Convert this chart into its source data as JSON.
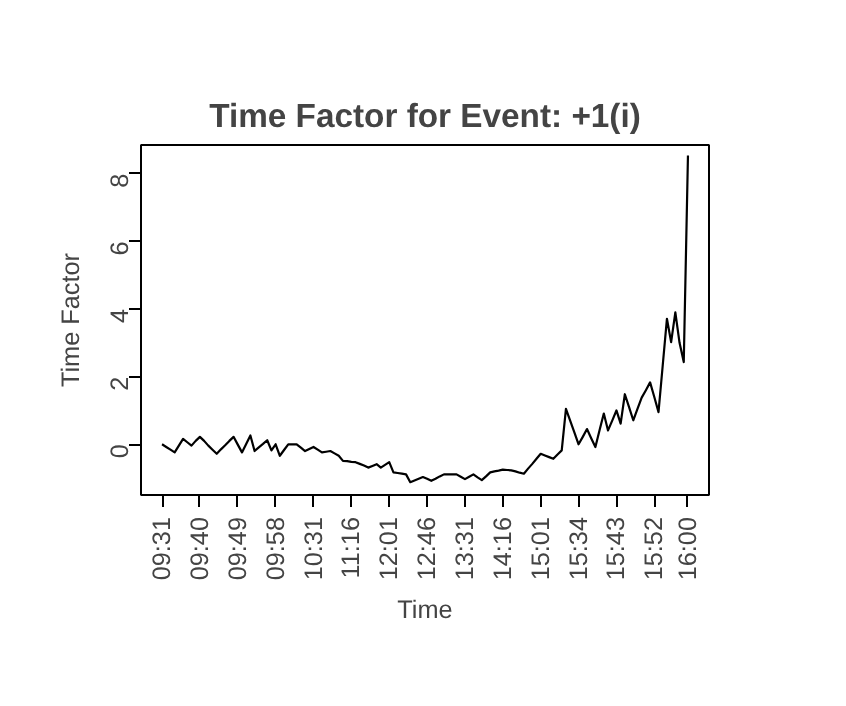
{
  "chart_data": {
    "type": "line",
    "title": "Time Factor for Event: +1(i)",
    "xlabel": "Time",
    "ylabel": "Time Factor",
    "categories": [
      "09:31",
      null,
      null,
      null,
      null,
      null,
      null,
      null,
      null,
      "09:40",
      null,
      null,
      null,
      null,
      null,
      null,
      null,
      null,
      "09:49",
      null,
      null,
      null,
      null,
      null,
      null,
      null,
      null,
      "09:58",
      null,
      null,
      null,
      null,
      null,
      null,
      null,
      null,
      "10:31",
      null,
      null,
      null,
      null,
      null,
      null,
      null,
      null,
      "11:16",
      null,
      null,
      null,
      null,
      null,
      null,
      null,
      null,
      "12:01",
      null,
      null,
      null,
      null,
      null,
      null,
      null,
      null,
      "12:46",
      null,
      null,
      null,
      null,
      null,
      null,
      null,
      null,
      "13:31",
      null,
      null,
      null,
      null,
      null,
      null,
      null,
      null,
      "14:16",
      null,
      null,
      null,
      null,
      null,
      null,
      null,
      null,
      "15:01",
      null,
      null,
      null,
      null,
      null,
      null,
      null,
      null,
      "15:34",
      null,
      null,
      null,
      null,
      null,
      null,
      null,
      null,
      "15:43",
      null,
      null,
      null,
      null,
      null,
      null,
      null,
      null,
      "15:52",
      null,
      null,
      null,
      null,
      null,
      null,
      null,
      "16:00"
    ],
    "ylim": [
      -1.5,
      8.85
    ],
    "yticks": [
      0,
      2,
      4,
      6,
      8
    ],
    "line_style": "solid",
    "series": [
      {
        "color": "#000000",
        "values": [
          0,
          -0.08,
          -0.16,
          -0.24,
          -0.04,
          0.16,
          0.06,
          -0.04,
          0.1,
          0.22,
          0.1,
          -0.04,
          -0.16,
          -0.28,
          -0.15,
          -0.03,
          0.1,
          0.22,
          -0.01,
          -0.24,
          0.01,
          0.26,
          -0.2,
          -0.09,
          0.01,
          0.12,
          -0.18,
          0,
          -0.34,
          -0.17,
          0,
          0,
          0,
          -0.1,
          -0.2,
          -0.14,
          -0.08,
          -0.16,
          -0.24,
          -0.22,
          -0.2,
          -0.27,
          -0.34,
          -0.49,
          -0.5,
          -0.52,
          -0.53,
          -0.58,
          -0.63,
          -0.69,
          -0.64,
          -0.59,
          -0.69,
          -0.61,
          -0.53,
          -0.83,
          -0.85,
          -0.87,
          -0.89,
          -1.12,
          -1.07,
          -1.02,
          -0.97,
          -1.02,
          -1.08,
          -1.02,
          -0.95,
          -0.89,
          -0.89,
          -0.89,
          -0.89,
          -0.96,
          -1.03,
          -0.96,
          -0.89,
          -0.98,
          -1.06,
          -0.95,
          -0.83,
          -0.8,
          -0.78,
          -0.75,
          -0.76,
          -0.77,
          -0.8,
          -0.84,
          -0.87,
          -0.72,
          -0.58,
          -0.43,
          -0.28,
          -0.33,
          -0.38,
          -0.43,
          -0.3,
          -0.18,
          1.05,
          0.7,
          0.35,
          0,
          0.22,
          0.45,
          0.18,
          -0.08,
          0.42,
          0.91,
          0.41,
          0.7,
          1.0,
          0.61,
          1.48,
          1.1,
          0.71,
          1.05,
          1.38,
          1.6,
          1.83,
          1.4,
          0.95,
          2.33,
          3.71,
          3.02,
          3.9,
          3.0,
          2.43,
          8.54
        ]
      }
    ]
  }
}
